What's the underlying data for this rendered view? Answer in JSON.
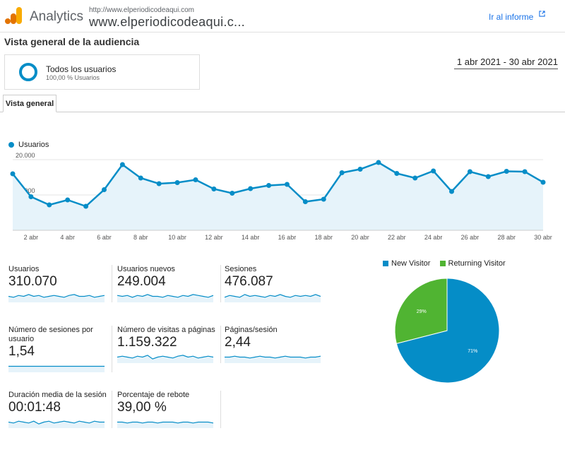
{
  "header": {
    "app_name": "Analytics",
    "site_url": "http://www.elperiodicodeaqui.com",
    "site_name": "www.elperiodicodeaqui.c...",
    "report_link": "Ir al informe"
  },
  "page_title": "Vista general de la audiencia",
  "segment": {
    "name": "Todos los usuarios",
    "sub": "100,00 % Usuarios"
  },
  "date_range": "1 abr 2021 - 30 abr 2021",
  "tabs": [
    "Vista general"
  ],
  "colors": {
    "series": "#058dc7",
    "fill": "#e6f3fa",
    "returning": "#50b432"
  },
  "chart_data": [
    {
      "type": "line",
      "series": [
        {
          "name": "Usuarios",
          "values": [
            16000,
            9500,
            7200,
            8600,
            6800,
            11500,
            18600,
            14800,
            13200,
            13500,
            14300,
            11700,
            10500,
            11800,
            12700,
            13000,
            8100,
            8800,
            16300,
            17300,
            19200,
            16100,
            14800,
            16800,
            11000,
            16600,
            15200,
            16700,
            16600,
            13600
          ]
        }
      ],
      "x": [
        "1 abr",
        "2 abr",
        "3 abr",
        "4 abr",
        "5 abr",
        "6 abr",
        "7 abr",
        "8 abr",
        "9 abr",
        "10 abr",
        "11 abr",
        "12 abr",
        "13 abr",
        "14 abr",
        "15 abr",
        "16 abr",
        "17 abr",
        "18 abr",
        "19 abr",
        "20 abr",
        "21 abr",
        "22 abr",
        "23 abr",
        "24 abr",
        "25 abr",
        "26 abr",
        "27 abr",
        "28 abr",
        "29 abr",
        "30 abr"
      ],
      "x_ticks": [
        "2 abr",
        "4 abr",
        "6 abr",
        "8 abr",
        "10 abr",
        "12 abr",
        "14 abr",
        "16 abr",
        "18 abr",
        "20 abr",
        "22 abr",
        "24 abr",
        "26 abr",
        "28 abr",
        "30 abr"
      ],
      "y_ticks": [
        "20.000",
        "10.000"
      ],
      "ylim": [
        0,
        20000
      ],
      "grid": true
    },
    {
      "type": "pie",
      "series": [
        {
          "name": "New Visitor",
          "value": 71,
          "label": "71%",
          "color": "#058dc7"
        },
        {
          "name": "Returning Visitor",
          "value": 29,
          "label": "29%",
          "color": "#50b432"
        }
      ]
    }
  ],
  "metrics": [
    {
      "label": "Usuarios",
      "value": "310.070",
      "spark": [
        5,
        4,
        6,
        5,
        7,
        5,
        6,
        4,
        5,
        6,
        5,
        4,
        6,
        7,
        5,
        5,
        6,
        4,
        5,
        6
      ]
    },
    {
      "label": "Usuarios nuevos",
      "value": "249.004",
      "spark": [
        6,
        5,
        6,
        4,
        6,
        5,
        7,
        5,
        5,
        4,
        6,
        5,
        4,
        6,
        5,
        7,
        6,
        5,
        4,
        6
      ]
    },
    {
      "label": "Sesiones",
      "value": "476.087",
      "spark": [
        4,
        6,
        5,
        4,
        7,
        5,
        6,
        5,
        4,
        6,
        5,
        7,
        5,
        4,
        6,
        5,
        6,
        5,
        7,
        5
      ]
    },
    {
      "label": "Número de sesiones por usuario",
      "value": "1,54",
      "spark": [
        5,
        5,
        5,
        5,
        5,
        5,
        5,
        5,
        5,
        5,
        5,
        5,
        5,
        5,
        5,
        5,
        5,
        5,
        5,
        5
      ]
    },
    {
      "label": "Número de visitas a páginas",
      "value": "1.159.322",
      "spark": [
        5,
        6,
        5,
        4,
        6,
        5,
        7,
        3,
        5,
        6,
        5,
        4,
        6,
        7,
        5,
        6,
        4,
        5,
        6,
        5
      ]
    },
    {
      "label": "Páginas/sesión",
      "value": "2,44",
      "spark": [
        5,
        5,
        6,
        5,
        5,
        4,
        5,
        6,
        5,
        5,
        4,
        5,
        6,
        5,
        5,
        5,
        4,
        5,
        5,
        6
      ]
    },
    {
      "label": "Duración media de la sesión",
      "value": "00:01:48",
      "spark": [
        5,
        4,
        6,
        5,
        4,
        6,
        3,
        5,
        6,
        4,
        5,
        6,
        5,
        4,
        6,
        5,
        4,
        6,
        5,
        5
      ]
    },
    {
      "label": "Porcentaje de rebote",
      "value": "39,00 %",
      "spark": [
        5,
        5,
        4,
        5,
        5,
        4,
        5,
        5,
        4,
        5,
        5,
        5,
        4,
        5,
        5,
        4,
        5,
        5,
        5,
        4
      ]
    }
  ]
}
